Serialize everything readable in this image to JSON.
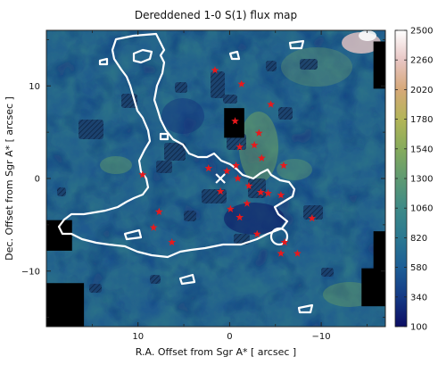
{
  "chart_data": {
    "type": "heatmap",
    "title": "Dereddened 1-0 S(1) flux map",
    "xlabel": "R.A. Offset from Sgr A* [ arcsec ]",
    "ylabel": "Dec. Offset from Sgr A* [ arcsec ]",
    "xlim": [
      20,
      -17
    ],
    "ylim": [
      -16,
      16
    ],
    "xticks": [
      10,
      0,
      -10
    ],
    "xtick_labels": [
      "10",
      "0",
      "−10"
    ],
    "yticks": [
      10,
      0,
      -10
    ],
    "ytick_labels": [
      "10",
      "0",
      "−10"
    ],
    "colorbar": {
      "min": 100,
      "max": 2500,
      "ticks": [
        "2500",
        "2260",
        "2020",
        "1780",
        "1540",
        "1300",
        "1060",
        "820",
        "580",
        "340",
        "100"
      ],
      "colors": [
        "#0c0d63",
        "#143a85",
        "#1d5e96",
        "#2b7891",
        "#3e8a87",
        "#5f9a72",
        "#86ab5c",
        "#b3b558",
        "#d6a878",
        "#e8c6c4",
        "#ffffff"
      ]
    },
    "markers": {
      "symbol": "star",
      "color": "#e8191c",
      "points": [
        [
          1.6,
          11.7
        ],
        [
          -1.3,
          10.2
        ],
        [
          -4.5,
          8.0
        ],
        [
          -0.6,
          6.2
        ],
        [
          -3.2,
          4.9
        ],
        [
          -2.7,
          3.6
        ],
        [
          -1.1,
          3.4
        ],
        [
          -3.5,
          2.2
        ],
        [
          -5.9,
          1.4
        ],
        [
          2.3,
          1.1
        ],
        [
          9.5,
          0.4
        ],
        [
          -0.9,
          0.0
        ],
        [
          -2.1,
          -0.8
        ],
        [
          1.0,
          -1.4
        ],
        [
          -3.4,
          -1.5
        ],
        [
          -4.2,
          -1.6
        ],
        [
          -5.6,
          -1.8
        ],
        [
          -1.9,
          -2.7
        ],
        [
          -0.1,
          -3.3
        ],
        [
          -1.1,
          -4.2
        ],
        [
          -9.0,
          -4.3
        ],
        [
          8.3,
          -5.3
        ],
        [
          -3.0,
          -6.0
        ],
        [
          -6.0,
          -6.9
        ],
        [
          -5.6,
          -8.1
        ],
        [
          -7.4,
          -8.1
        ],
        [
          6.3,
          -6.9
        ],
        [
          7.7,
          -3.6
        ],
        [
          -0.7,
          1.4
        ],
        [
          0.3,
          0.8
        ]
      ]
    },
    "masked_regions": [
      {
        "x": [
          20.0,
          15.9
        ],
        "y": [
          -16.0,
          -11.3
        ]
      },
      {
        "x": [
          20.0,
          17.2
        ],
        "y": [
          -7.8,
          -4.5
        ]
      },
      {
        "x": [
          -15.7,
          -17.0
        ],
        "y": [
          -5.7,
          -9.8
        ]
      },
      {
        "x": [
          -15.7,
          -17.0
        ],
        "y": [
          14.8,
          9.7
        ]
      },
      {
        "x": [
          -14.4,
          -17.0
        ],
        "y": [
          -9.7,
          -13.8
        ]
      },
      {
        "x": [
          0.6,
          -1.6
        ],
        "y": [
          7.6,
          4.4
        ]
      }
    ],
    "cross": [
      1.0,
      0.0
    ]
  }
}
